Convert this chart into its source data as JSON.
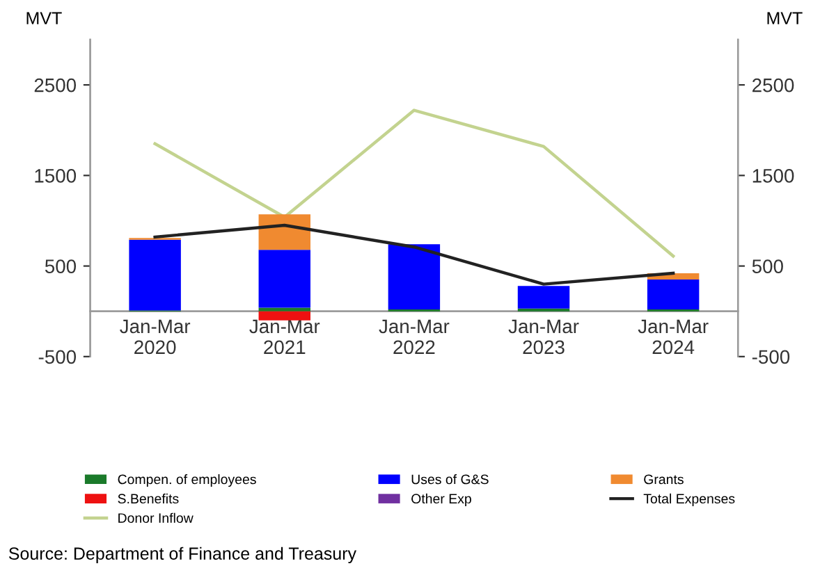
{
  "chart_data": {
    "type": "bar",
    "stacked": true,
    "ylabel": "MVT",
    "y2label": "MVT",
    "categories": [
      "Jan-Mar\n2020",
      "Jan-Mar\n2021",
      "Jan-Mar\n2022",
      "Jan-Mar\n2023",
      "Jan-Mar\n2024"
    ],
    "series": [
      {
        "name": "Compen. of employees",
        "color": "#1a7a2a",
        "values": [
          10,
          40,
          20,
          30,
          20
        ]
      },
      {
        "name": "Uses of G&S",
        "color": "#0000ff",
        "values": [
          780,
          640,
          720,
          250,
          330
        ]
      },
      {
        "name": "Grants",
        "color": "#f08a30",
        "values": [
          20,
          390,
          0,
          0,
          70
        ]
      },
      {
        "name": "S.Benefits",
        "color": "#ee1111",
        "values": [
          0,
          -100,
          0,
          0,
          0
        ]
      },
      {
        "name": "Other Exp",
        "color": "#7030a0",
        "values": [
          0,
          0,
          0,
          0,
          0
        ]
      },
      {
        "name": "Total Expenses",
        "type": "line",
        "color": "#222222",
        "values": [
          820,
          950,
          710,
          300,
          420
        ]
      },
      {
        "name": "Donor Inflow",
        "type": "line",
        "axis": "y2",
        "color": "#c3d38f",
        "values": [
          1850,
          1040,
          2220,
          1820,
          610
        ]
      }
    ],
    "ylim": [
      -500,
      3000
    ],
    "yticks": [
      -500,
      500,
      1500,
      2500
    ],
    "y2lim": [
      -500,
      3000
    ],
    "y2ticks": [
      -500,
      500,
      1500,
      2500
    ],
    "grid": false,
    "legend": "bottom",
    "annotations": [
      "Source: Department of Finance and Treasury"
    ]
  }
}
